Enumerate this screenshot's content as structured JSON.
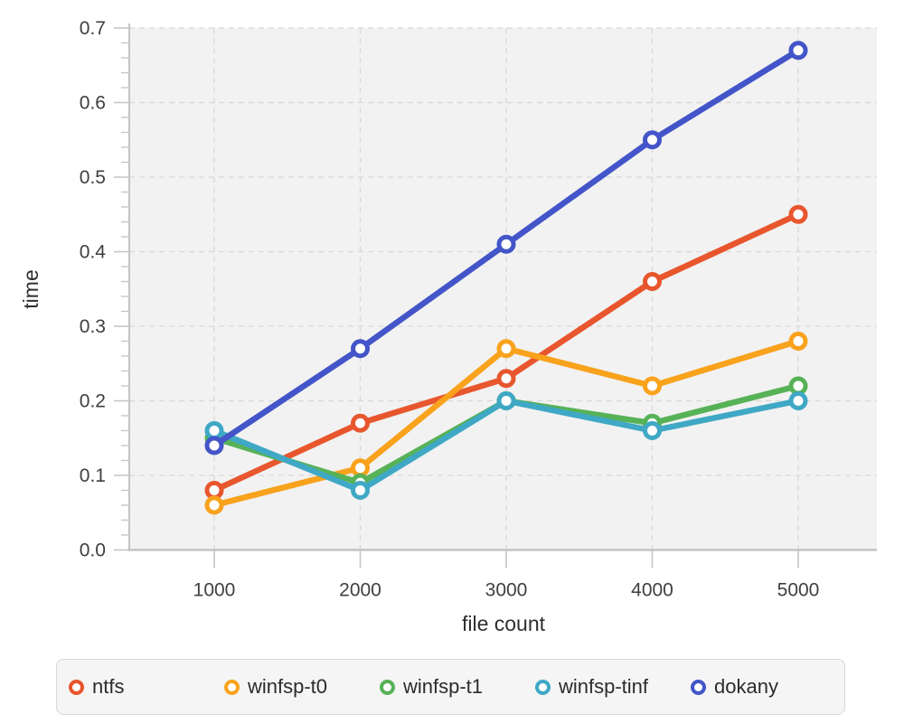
{
  "chart_data": {
    "type": "line",
    "title": "",
    "xlabel": "file count",
    "ylabel": "time",
    "x": [
      1000,
      2000,
      3000,
      4000,
      5000
    ],
    "x_tick_labels": [
      "1000",
      "2000",
      "3000",
      "4000",
      "5000"
    ],
    "y_tick_labels": [
      "0.0",
      "0.1",
      "0.2",
      "0.3",
      "0.4",
      "0.5",
      "0.6",
      "0.7"
    ],
    "y_tick_values": [
      0.0,
      0.1,
      0.2,
      0.3,
      0.4,
      0.5,
      0.6,
      0.7
    ],
    "y_minor_tick_step": 0.02,
    "ylim": [
      0,
      0.7
    ],
    "grid": "dashed",
    "legend_position": "bottom",
    "marker_style": "open-circle",
    "series": [
      {
        "name": "ntfs",
        "color": "#e8562d",
        "values": [
          0.08,
          0.17,
          0.23,
          0.36,
          0.45
        ]
      },
      {
        "name": "winfsp-t0",
        "color": "#f9a21c",
        "values": [
          0.06,
          0.11,
          0.27,
          0.22,
          0.28
        ]
      },
      {
        "name": "winfsp-t1",
        "color": "#57b257",
        "values": [
          0.15,
          0.09,
          0.2,
          0.17,
          0.22
        ]
      },
      {
        "name": "winfsp-tinf",
        "color": "#3fa8c5",
        "values": [
          0.16,
          0.08,
          0.2,
          0.16,
          0.2
        ]
      },
      {
        "name": "dokany",
        "color": "#4355c8",
        "values": [
          0.14,
          0.27,
          0.41,
          0.55,
          0.67
        ]
      }
    ],
    "colors": {
      "plot_background": "#f2f2f2",
      "grid_color": "#d8d8d8",
      "axis_color": "#c4c4c4",
      "tick_label_color": "#3f3f3f",
      "axis_title_color": "#2e2e2e",
      "marker_fill": "#ffffff"
    }
  }
}
